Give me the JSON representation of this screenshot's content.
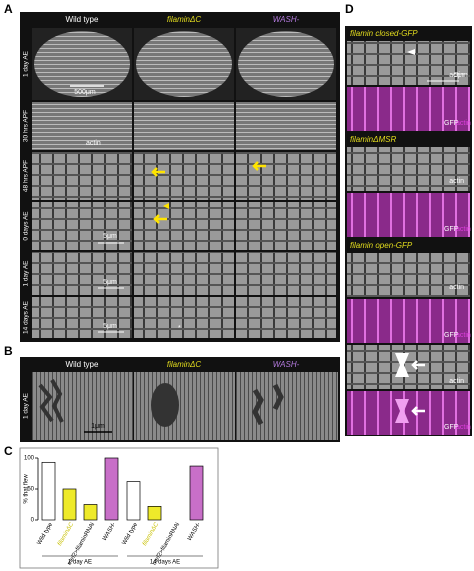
{
  "panel_a": {
    "label": "A",
    "columns": [
      "Wild type",
      "filaminΔC",
      "WASH-"
    ],
    "rows": [
      "1 day AE",
      "30 hrs APF",
      "48 hrs APF",
      "0 days AE",
      "1 day AE",
      "14 days AE"
    ],
    "annotations": {
      "scale_500": "500μm",
      "actin": "actin",
      "scale_0": "5μm",
      "scale_1": "5μm",
      "scale_2": "5μm",
      "asterisk": "*"
    }
  },
  "panel_b": {
    "label": "B",
    "columns": [
      "Wild type",
      "filaminΔC",
      "WASH-"
    ],
    "row": "1 day AE",
    "scale": "1μm"
  },
  "panel_c": {
    "label": "C",
    "type": "bar",
    "ylabel": "% that flew",
    "ylim": [
      0,
      100
    ],
    "yticks": [
      0,
      50,
      100
    ],
    "groups": [
      {
        "name": "1 day AE",
        "categories": [
          "Wild type",
          "filaminΔC",
          "mef2>filaminRNAi",
          "WASH-"
        ],
        "values": [
          93,
          50,
          25,
          100
        ],
        "colors": [
          "#ffffff",
          "#eeea2a",
          "#eeea2a",
          "#c86fc8"
        ]
      },
      {
        "name": "14 days AE",
        "categories": [
          "Wild type",
          "filaminΔC",
          "mef2>filaminRNAi",
          "WASH-"
        ],
        "values": [
          62,
          22,
          0,
          87
        ],
        "colors": [
          "#ffffff",
          "#eeea2a",
          "#eeea2a",
          "#c86fc8"
        ]
      }
    ]
  },
  "panel_d": {
    "label": "D",
    "sections": [
      {
        "title": "filamin closed-GFP",
        "actin": "actin",
        "scale": "5μm",
        "gfp": "GFP",
        "gfp_actin": "actin"
      },
      {
        "title": "filaminΔMSR",
        "actin": "actin",
        "gfp": "GFP",
        "gfp_actin": "actin"
      },
      {
        "title": "filamin open-GFP",
        "actin": "actin",
        "gfp": "GFP",
        "gfp_actin": "actin",
        "actin2": "actin",
        "gfp2": "GFP",
        "gfp_actin2": "actin"
      }
    ]
  }
}
